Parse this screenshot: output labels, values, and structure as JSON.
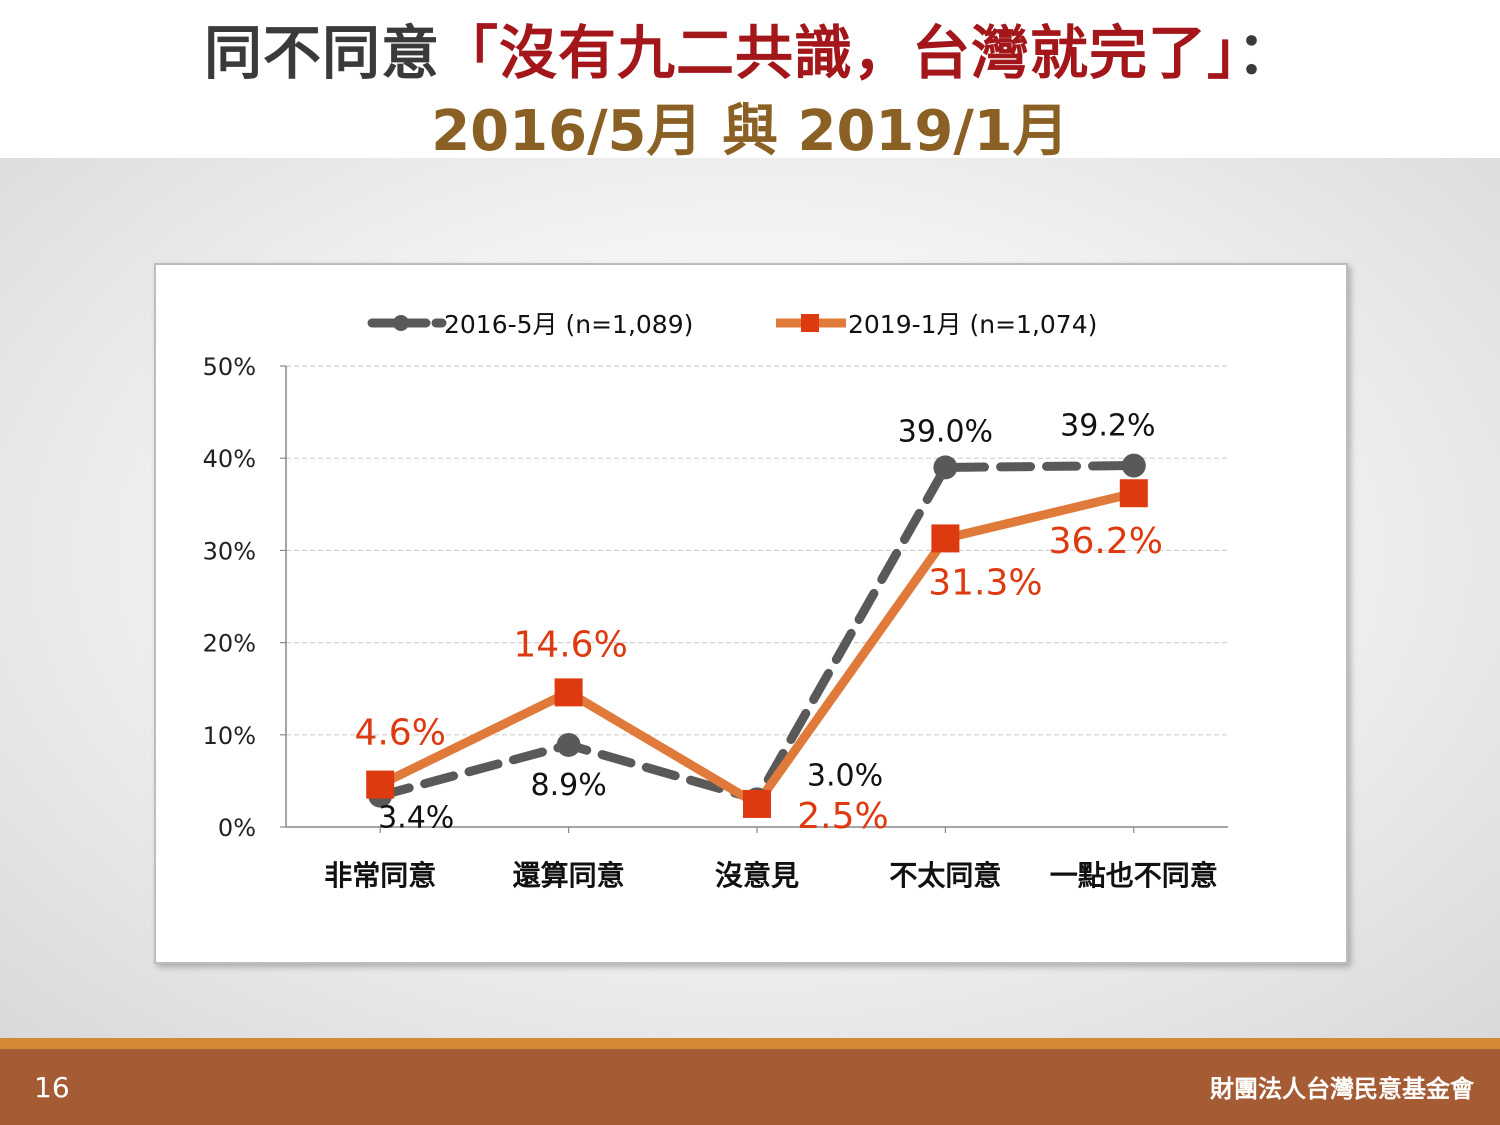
{
  "title": {
    "line1_prefix": "同不同意",
    "line1_quote": "「沒有九二共識，台灣就完了」",
    "line1_suffix": "：",
    "line2": "2016/5月 與 2019/1月"
  },
  "footer": {
    "page_number": "16",
    "organization": "財團法人台灣民意基金會"
  },
  "chart_data": {
    "type": "line",
    "categories": [
      "非常同意",
      "還算同意",
      "沒意見",
      "不太同意",
      "一點也不同意"
    ],
    "ylim": [
      0,
      50
    ],
    "yticks": [
      "0%",
      "10%",
      "20%",
      "30%",
      "40%",
      "50%"
    ],
    "grid": true,
    "legend_position": "top",
    "series": [
      {
        "name": "2016-5月 (n=1,089)",
        "values": [
          3.4,
          8.9,
          3.0,
          39.0,
          39.2
        ],
        "labels": [
          "3.4%",
          "8.9%",
          "3.0%",
          "39.0%",
          "39.2%"
        ],
        "color": "#595959",
        "style": "dashed",
        "marker": "circle"
      },
      {
        "name": "2019-1月 (n=1,074)",
        "values": [
          4.6,
          14.6,
          2.5,
          31.3,
          36.2
        ],
        "labels": [
          "4.6%",
          "14.6%",
          "2.5%",
          "31.3%",
          "36.2%"
        ],
        "color": "#e07a3a",
        "style": "solid",
        "marker": "square",
        "marker_color": "#de3a10",
        "label_color": "#de3a10"
      }
    ]
  }
}
